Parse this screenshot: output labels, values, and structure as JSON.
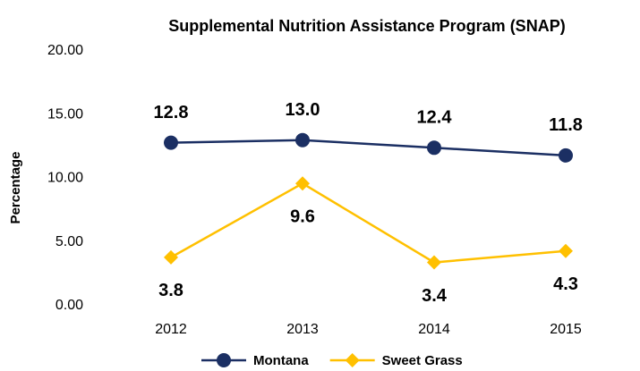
{
  "chart_data": {
    "type": "line",
    "title": "Supplemental Nutrition Assistance Program (SNAP)",
    "y_label": "Percentage",
    "categories": [
      "2012",
      "2013",
      "2014",
      "2015"
    ],
    "series": [
      {
        "name": "Montana",
        "color": "#1b2f63",
        "marker": "circle",
        "label_position": "above",
        "values": [
          12.8,
          13.0,
          12.4,
          11.8
        ],
        "value_labels": [
          "12.8",
          "13.0",
          "12.4",
          "11.8"
        ]
      },
      {
        "name": "Sweet Grass",
        "color": "#ffc000",
        "marker": "diamond",
        "label_position": "below",
        "values": [
          3.8,
          9.6,
          3.4,
          4.3
        ],
        "value_labels": [
          "3.8",
          "9.6",
          "3.4",
          "4.3"
        ]
      }
    ],
    "ylim": [
      0,
      20
    ],
    "yticks": [
      {
        "value": 0,
        "label": "0.00"
      },
      {
        "value": 5,
        "label": "5.00"
      },
      {
        "value": 10,
        "label": "10.00"
      },
      {
        "value": 15,
        "label": "15.00"
      },
      {
        "value": 20,
        "label": "20.00"
      }
    ],
    "grid": false,
    "legend": "bottom"
  }
}
